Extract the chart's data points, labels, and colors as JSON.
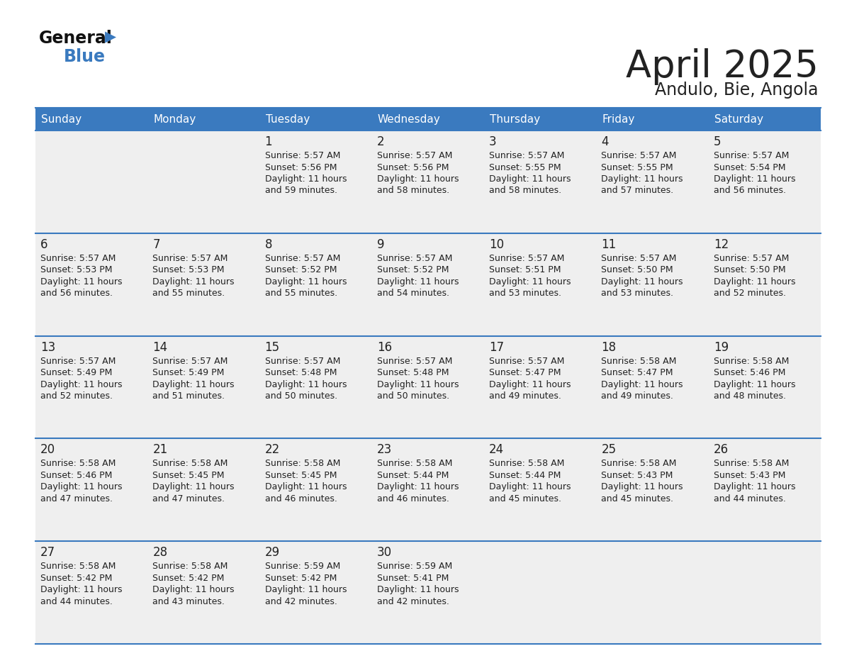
{
  "title": "April 2025",
  "subtitle": "Andulo, Bie, Angola",
  "header_color": "#3a7abf",
  "header_text_color": "#ffffff",
  "cell_bg_color": "#efefef",
  "border_color": "#3a7abf",
  "text_color": "#222222",
  "days_of_week": [
    "Sunday",
    "Monday",
    "Tuesday",
    "Wednesday",
    "Thursday",
    "Friday",
    "Saturday"
  ],
  "calendar_data": [
    [
      {
        "day": "",
        "sunrise": "",
        "sunset": "",
        "daylight_h": "",
        "daylight_m": ""
      },
      {
        "day": "",
        "sunrise": "",
        "sunset": "",
        "daylight_h": "",
        "daylight_m": ""
      },
      {
        "day": "1",
        "sunrise": "5:57 AM",
        "sunset": "5:56 PM",
        "daylight_h": "11 hours",
        "daylight_m": "and 59 minutes."
      },
      {
        "day": "2",
        "sunrise": "5:57 AM",
        "sunset": "5:56 PM",
        "daylight_h": "11 hours",
        "daylight_m": "and 58 minutes."
      },
      {
        "day": "3",
        "sunrise": "5:57 AM",
        "sunset": "5:55 PM",
        "daylight_h": "11 hours",
        "daylight_m": "and 58 minutes."
      },
      {
        "day": "4",
        "sunrise": "5:57 AM",
        "sunset": "5:55 PM",
        "daylight_h": "11 hours",
        "daylight_m": "and 57 minutes."
      },
      {
        "day": "5",
        "sunrise": "5:57 AM",
        "sunset": "5:54 PM",
        "daylight_h": "11 hours",
        "daylight_m": "and 56 minutes."
      }
    ],
    [
      {
        "day": "6",
        "sunrise": "5:57 AM",
        "sunset": "5:53 PM",
        "daylight_h": "11 hours",
        "daylight_m": "and 56 minutes."
      },
      {
        "day": "7",
        "sunrise": "5:57 AM",
        "sunset": "5:53 PM",
        "daylight_h": "11 hours",
        "daylight_m": "and 55 minutes."
      },
      {
        "day": "8",
        "sunrise": "5:57 AM",
        "sunset": "5:52 PM",
        "daylight_h": "11 hours",
        "daylight_m": "and 55 minutes."
      },
      {
        "day": "9",
        "sunrise": "5:57 AM",
        "sunset": "5:52 PM",
        "daylight_h": "11 hours",
        "daylight_m": "and 54 minutes."
      },
      {
        "day": "10",
        "sunrise": "5:57 AM",
        "sunset": "5:51 PM",
        "daylight_h": "11 hours",
        "daylight_m": "and 53 minutes."
      },
      {
        "day": "11",
        "sunrise": "5:57 AM",
        "sunset": "5:50 PM",
        "daylight_h": "11 hours",
        "daylight_m": "and 53 minutes."
      },
      {
        "day": "12",
        "sunrise": "5:57 AM",
        "sunset": "5:50 PM",
        "daylight_h": "11 hours",
        "daylight_m": "and 52 minutes."
      }
    ],
    [
      {
        "day": "13",
        "sunrise": "5:57 AM",
        "sunset": "5:49 PM",
        "daylight_h": "11 hours",
        "daylight_m": "and 52 minutes."
      },
      {
        "day": "14",
        "sunrise": "5:57 AM",
        "sunset": "5:49 PM",
        "daylight_h": "11 hours",
        "daylight_m": "and 51 minutes."
      },
      {
        "day": "15",
        "sunrise": "5:57 AM",
        "sunset": "5:48 PM",
        "daylight_h": "11 hours",
        "daylight_m": "and 50 minutes."
      },
      {
        "day": "16",
        "sunrise": "5:57 AM",
        "sunset": "5:48 PM",
        "daylight_h": "11 hours",
        "daylight_m": "and 50 minutes."
      },
      {
        "day": "17",
        "sunrise": "5:57 AM",
        "sunset": "5:47 PM",
        "daylight_h": "11 hours",
        "daylight_m": "and 49 minutes."
      },
      {
        "day": "18",
        "sunrise": "5:58 AM",
        "sunset": "5:47 PM",
        "daylight_h": "11 hours",
        "daylight_m": "and 49 minutes."
      },
      {
        "day": "19",
        "sunrise": "5:58 AM",
        "sunset": "5:46 PM",
        "daylight_h": "11 hours",
        "daylight_m": "and 48 minutes."
      }
    ],
    [
      {
        "day": "20",
        "sunrise": "5:58 AM",
        "sunset": "5:46 PM",
        "daylight_h": "11 hours",
        "daylight_m": "and 47 minutes."
      },
      {
        "day": "21",
        "sunrise": "5:58 AM",
        "sunset": "5:45 PM",
        "daylight_h": "11 hours",
        "daylight_m": "and 47 minutes."
      },
      {
        "day": "22",
        "sunrise": "5:58 AM",
        "sunset": "5:45 PM",
        "daylight_h": "11 hours",
        "daylight_m": "and 46 minutes."
      },
      {
        "day": "23",
        "sunrise": "5:58 AM",
        "sunset": "5:44 PM",
        "daylight_h": "11 hours",
        "daylight_m": "and 46 minutes."
      },
      {
        "day": "24",
        "sunrise": "5:58 AM",
        "sunset": "5:44 PM",
        "daylight_h": "11 hours",
        "daylight_m": "and 45 minutes."
      },
      {
        "day": "25",
        "sunrise": "5:58 AM",
        "sunset": "5:43 PM",
        "daylight_h": "11 hours",
        "daylight_m": "and 45 minutes."
      },
      {
        "day": "26",
        "sunrise": "5:58 AM",
        "sunset": "5:43 PM",
        "daylight_h": "11 hours",
        "daylight_m": "and 44 minutes."
      }
    ],
    [
      {
        "day": "27",
        "sunrise": "5:58 AM",
        "sunset": "5:42 PM",
        "daylight_h": "11 hours",
        "daylight_m": "and 44 minutes."
      },
      {
        "day": "28",
        "sunrise": "5:58 AM",
        "sunset": "5:42 PM",
        "daylight_h": "11 hours",
        "daylight_m": "and 43 minutes."
      },
      {
        "day": "29",
        "sunrise": "5:59 AM",
        "sunset": "5:42 PM",
        "daylight_h": "11 hours",
        "daylight_m": "and 42 minutes."
      },
      {
        "day": "30",
        "sunrise": "5:59 AM",
        "sunset": "5:41 PM",
        "daylight_h": "11 hours",
        "daylight_m": "and 42 minutes."
      },
      {
        "day": "",
        "sunrise": "",
        "sunset": "",
        "daylight_h": "",
        "daylight_m": ""
      },
      {
        "day": "",
        "sunrise": "",
        "sunset": "",
        "daylight_h": "",
        "daylight_m": ""
      },
      {
        "day": "",
        "sunrise": "",
        "sunset": "",
        "daylight_h": "",
        "daylight_m": ""
      }
    ]
  ],
  "logo_general_color": "#111111",
  "logo_blue_color": "#3a7abf",
  "logo_triangle_color": "#3a7abf"
}
